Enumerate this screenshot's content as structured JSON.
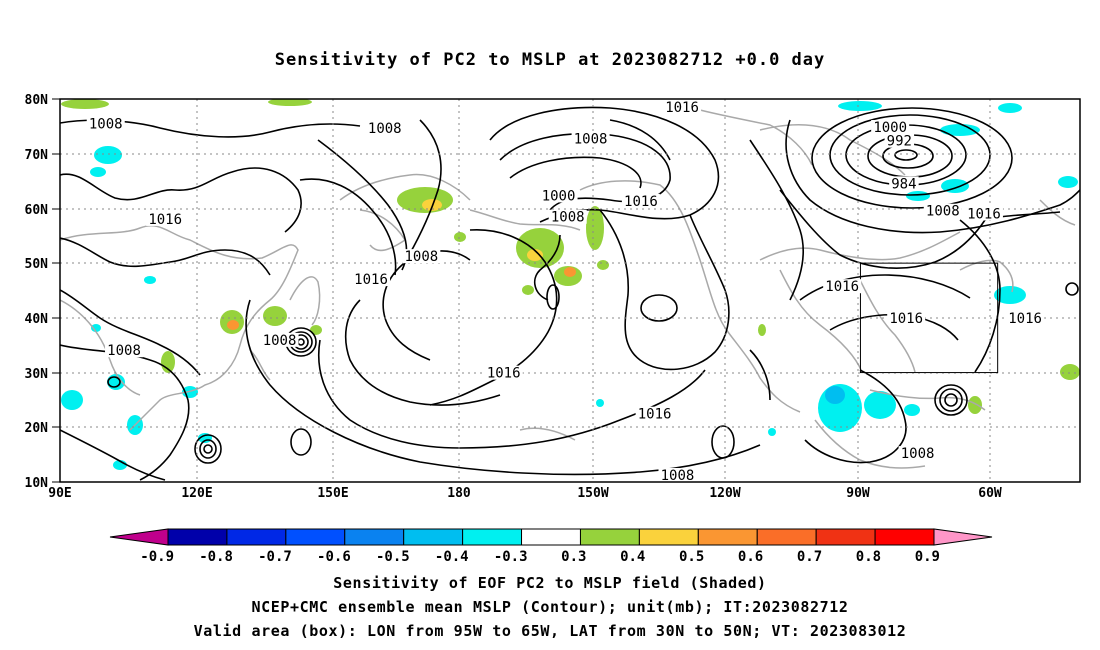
{
  "title": "Sensitivity of PC2 to MSLP at 2023082712 +0.0 day",
  "lat_labels": [
    "80N",
    "70N",
    "60N",
    "50N",
    "40N",
    "30N",
    "20N",
    "10N"
  ],
  "lon_labels": [
    "90E",
    "120E",
    "150E",
    "180",
    "150W",
    "120W",
    "90W",
    "60W"
  ],
  "contour_labels": [
    {
      "text": "1008",
      "lon": 100,
      "lat": 75.3
    },
    {
      "text": "1008",
      "lon": 161,
      "lat": 74.5
    },
    {
      "text": "1016",
      "lon": -134,
      "lat": 78.4
    },
    {
      "text": "1008",
      "lon": -154,
      "lat": 72.6
    },
    {
      "text": "1000",
      "lon": -88.5,
      "lat": 74.7
    },
    {
      "text": "992",
      "lon": -86.5,
      "lat": 72.2
    },
    {
      "text": "984",
      "lon": -85.5,
      "lat": 64.4
    },
    {
      "text": "1000",
      "lon": -161,
      "lat": 62.2
    },
    {
      "text": "1008",
      "lon": -159,
      "lat": 58.3
    },
    {
      "text": "1016",
      "lon": -143,
      "lat": 61.2
    },
    {
      "text": "1008",
      "lon": -77,
      "lat": 59.4
    },
    {
      "text": "1016",
      "lon": -68,
      "lat": 58.9
    },
    {
      "text": "1016",
      "lon": 113,
      "lat": 57.9
    },
    {
      "text": "1008",
      "lon": 169,
      "lat": 51.1
    },
    {
      "text": "1016",
      "lon": 158,
      "lat": 46.9
    },
    {
      "text": "1016",
      "lon": -99,
      "lat": 45.6
    },
    {
      "text": "1016",
      "lon": -85,
      "lat": 39.8
    },
    {
      "text": "1016",
      "lon": -59,
      "lat": 39.8
    },
    {
      "text": "1008",
      "lon": 104,
      "lat": 33.9
    },
    {
      "text": "1008",
      "lon": 138,
      "lat": 35.8
    },
    {
      "text": "1016",
      "lon": -173,
      "lat": 29.8
    },
    {
      "text": "1016",
      "lon": -140,
      "lat": 22.3
    },
    {
      "text": "1008",
      "lon": -82.5,
      "lat": 15.1
    },
    {
      "text": "1008",
      "lon": -135,
      "lat": 11.1
    }
  ],
  "valid_box": {
    "lon_min": -95,
    "lon_max": -65,
    "lat_min": 30,
    "lat_max": 50
  },
  "colorbar": {
    "labels": [
      "-0.9",
      "-0.8",
      "-0.7",
      "-0.6",
      "-0.5",
      "-0.4",
      "-0.3",
      "0.3",
      "0.4",
      "0.5",
      "0.6",
      "0.7",
      "0.8",
      "0.9"
    ],
    "colors": [
      "#c0008c",
      "#0000aa",
      "#0028e6",
      "#0050ff",
      "#0a82f0",
      "#00bef0",
      "#00f0f0",
      "#ffffff",
      "#96d23c",
      "#fad23c",
      "#fa9632",
      "#fa6e28",
      "#f03214",
      "#ff0000",
      "#ff96c8"
    ]
  },
  "caption": [
    "Sensitivity of EOF PC2 to MSLP field (Shaded)",
    "NCEP+CMC ensemble mean MSLP (Contour); unit(mb); IT:2023082712",
    "Valid area (box): LON from 95W to 65W, LAT from 30N to 50N; VT: 2023083012"
  ]
}
